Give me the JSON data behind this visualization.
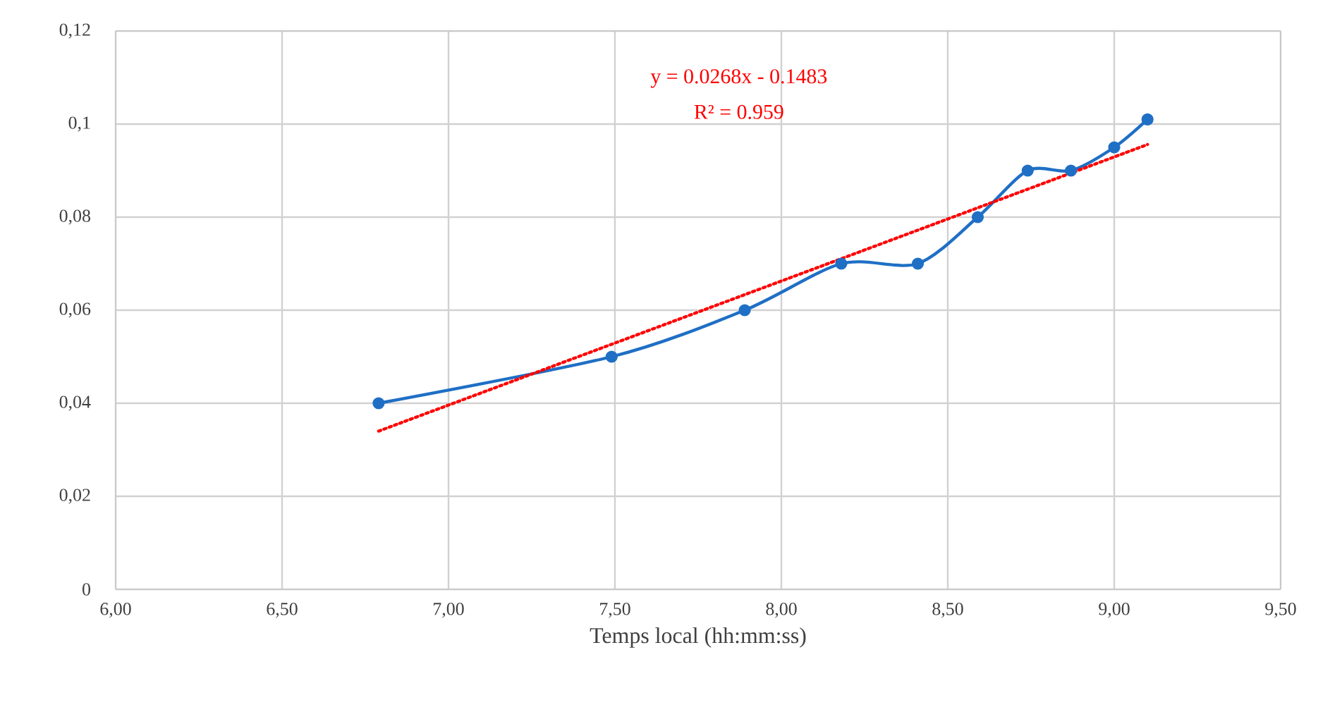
{
  "chart_data": {
    "type": "line",
    "xlabel": "Temps local (hh:mm:ss)",
    "xlim": [
      6,
      9.5
    ],
    "xticks": [
      {
        "value": 6,
        "label": "6,00"
      },
      {
        "value": 6.5,
        "label": "6,50"
      },
      {
        "value": 7,
        "label": "7,00"
      },
      {
        "value": 7.5,
        "label": "7,50"
      },
      {
        "value": 8,
        "label": "8,00"
      },
      {
        "value": 8.5,
        "label": "8,50"
      },
      {
        "value": 9,
        "label": "9,00"
      },
      {
        "value": 9.5,
        "label": "9,50"
      }
    ],
    "ylim": [
      0,
      0.12
    ],
    "yticks": [
      0,
      {
        "value": 0.02,
        "label": "0,02"
      },
      {
        "value": 0.04,
        "label": "0,04"
      },
      {
        "value": 0.06,
        "label": "0,06"
      },
      {
        "value": 0.08,
        "label": "0,08"
      },
      {
        "value": 0.1,
        "label": "0,1"
      },
      {
        "value": 0.12,
        "label": "0,12"
      }
    ],
    "grid": true,
    "series": [
      {
        "color": "#1f6fc5",
        "marker": "circle",
        "line_style": "solid",
        "x": [
          6.79,
          7.49,
          7.89,
          8.18,
          8.41,
          8.59,
          8.74,
          8.87,
          9.0,
          9.1
        ],
        "values": [
          0.04,
          0.05,
          0.06,
          0.07,
          0.07,
          0.08,
          0.09,
          0.09,
          0.095,
          0.101
        ]
      },
      {
        "color": "#ff0000",
        "marker": "none",
        "line_style": "dotted",
        "x": [
          6.79,
          9.1
        ],
        "values": [
          0.034,
          0.0956
        ]
      }
    ],
    "annotations": [
      "y = 0.0268x - 0.1483",
      "R² = 0.959"
    ]
  }
}
